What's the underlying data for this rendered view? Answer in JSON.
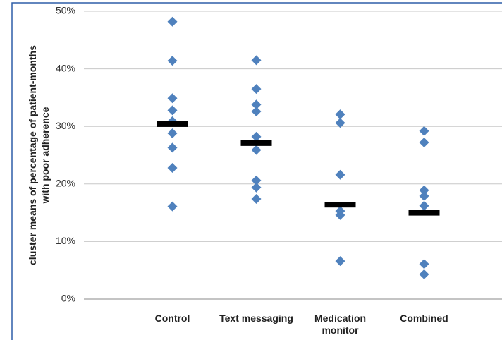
{
  "chart_data": {
    "type": "strip",
    "y_label": "cluster means of percentage of patient-months with poor adherence",
    "categories": [
      "Control",
      "Text messaging",
      "Medication monitor",
      "Combined"
    ],
    "values": [
      [
        48.2,
        41.4,
        34.9,
        32.8,
        30.9,
        28.8,
        26.3,
        22.8,
        16.1
      ],
      [
        41.5,
        36.5,
        33.8,
        32.6,
        28.2,
        25.9,
        20.6,
        19.4,
        17.4
      ],
      [
        32.1,
        30.6,
        21.6,
        15.3,
        14.6,
        6.6
      ],
      [
        29.2,
        27.2,
        18.9,
        17.9,
        16.2,
        6.1,
        4.3
      ]
    ],
    "means": [
      30.4,
      27.1,
      16.4,
      15.0
    ],
    "color": "#4f81bd",
    "mean_color": "#000000",
    "ylim": [
      0,
      50
    ],
    "yticks": [
      {
        "value": 0,
        "label": "0%"
      },
      {
        "value": 10,
        "label": "10%"
      },
      {
        "value": 20,
        "label": "20%"
      },
      {
        "value": 30,
        "label": "30%"
      },
      {
        "value": 40,
        "label": "40%"
      },
      {
        "value": 50,
        "label": "50%"
      }
    ],
    "grid": true
  }
}
